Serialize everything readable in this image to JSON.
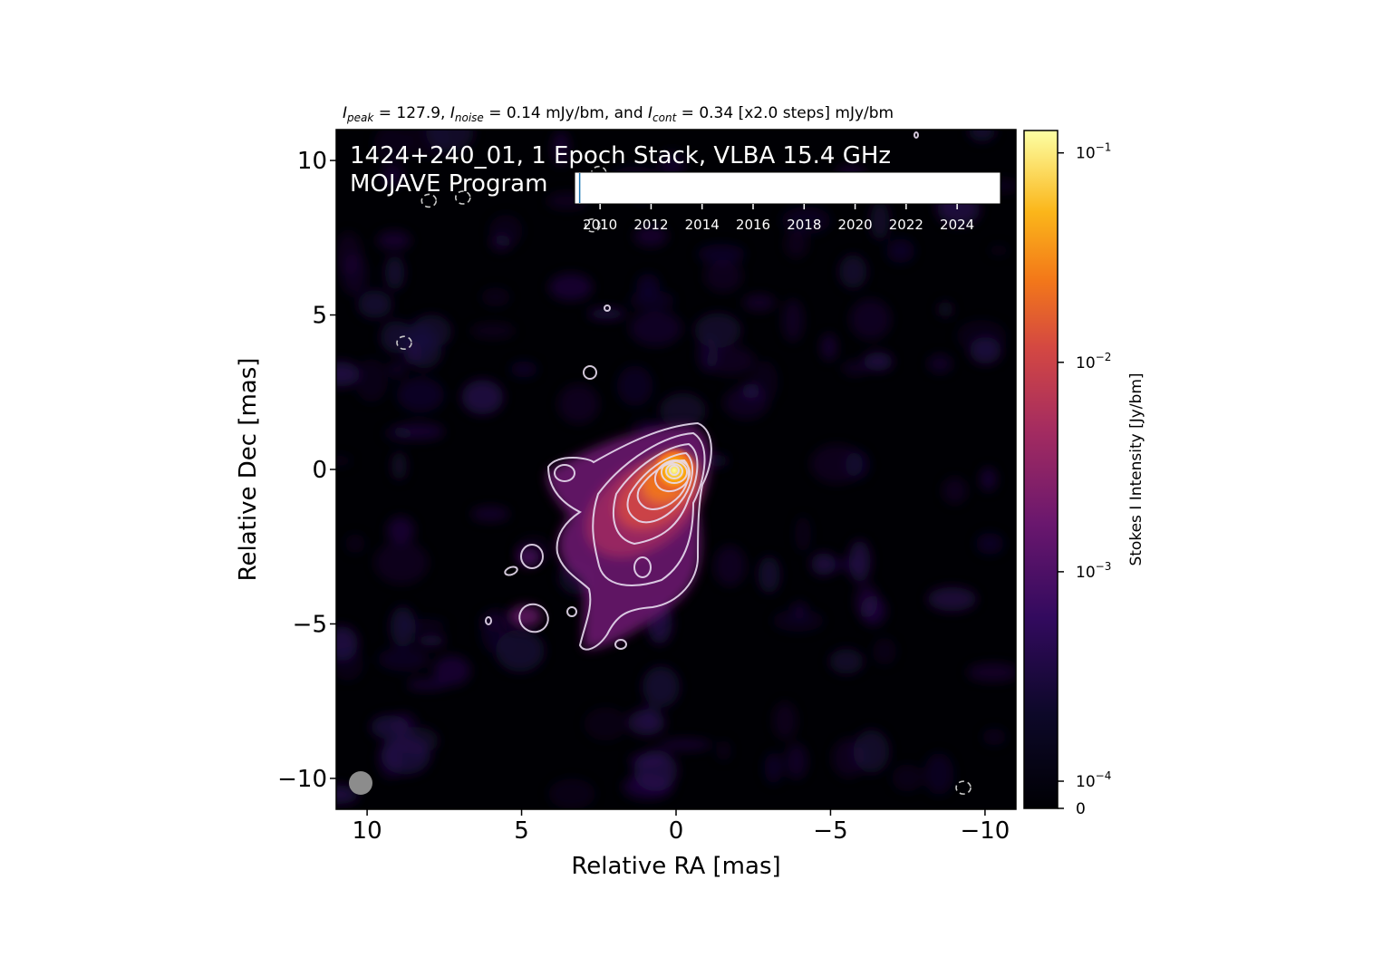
{
  "chart_data": {
    "type": "heatmap",
    "title_parts": {
      "peak_sym": "I",
      "peak_sub": "peak",
      "peak_text": " = 127.9, ",
      "noise_sym": "I",
      "noise_sub": "noise",
      "noise_text": " = 0.14 mJy/bm, and ",
      "cont_sym": "I",
      "cont_sub": "cont",
      "cont_text": " = 0.34 [x2.0 steps] mJy/bm"
    },
    "annotation_line1": "1424+240_01, 1 Epoch Stack, VLBA 15.4 GHz",
    "annotation_line2": "MOJAVE Program",
    "xlabel": "Relative RA [mas]",
    "ylabel": "Relative Dec [mas]",
    "xlim": [
      11,
      -11
    ],
    "ylim": [
      -11,
      11
    ],
    "x_ticks": [
      {
        "value": 10,
        "label": "10"
      },
      {
        "value": 5,
        "label": "5"
      },
      {
        "value": 0,
        "label": "0"
      },
      {
        "value": -5,
        "label": "−5"
      },
      {
        "value": -10,
        "label": "−10"
      }
    ],
    "y_ticks": [
      {
        "value": 10,
        "label": "10"
      },
      {
        "value": 5,
        "label": "5"
      },
      {
        "value": 0,
        "label": "0"
      },
      {
        "value": -5,
        "label": "−5"
      },
      {
        "value": -10,
        "label": "−10"
      }
    ],
    "colorbar": {
      "label": "Stokes I Intensity [Jy/bm]",
      "scale": "log",
      "range": [
        0,
        0.1279
      ],
      "ticks": [
        {
          "value": 0.1,
          "base": "10",
          "exp": "−1"
        },
        {
          "value": 0.01,
          "base": "10",
          "exp": "−2"
        },
        {
          "value": 0.001,
          "base": "10",
          "exp": "−3"
        },
        {
          "value": 0.0001,
          "base": "10",
          "exp": "−4"
        },
        {
          "value": 0,
          "base": "0",
          "exp": ""
        }
      ],
      "colormap": "inferno"
    },
    "epoch_timeline": {
      "ticks": [
        "2010",
        "2012",
        "2014",
        "2016",
        "2018",
        "2020",
        "2022",
        "2024"
      ],
      "range": [
        2009,
        2025.7
      ],
      "epochs": [
        2009.2
      ]
    },
    "source": {
      "core": {
        "x": 0,
        "y": 0,
        "peak_jy_bm": 0.1279
      },
      "contour_base_jy_bm": 0.00034,
      "contour_step": 2.0,
      "contour_levels_count": 9
    },
    "negative_contour_centers": [
      {
        "x": 8.0,
        "y": 8.7
      },
      {
        "x": 6.9,
        "y": 8.8
      },
      {
        "x": 2.5,
        "y": 9.6
      },
      {
        "x": 2.7,
        "y": 7.9
      },
      {
        "x": 8.8,
        "y": 4.1
      },
      {
        "x": -9.3,
        "y": -10.3
      }
    ],
    "beam": {
      "x": 10.2,
      "y": -10.2,
      "major_mas": 0.9,
      "minor_mas": 0.9
    }
  }
}
